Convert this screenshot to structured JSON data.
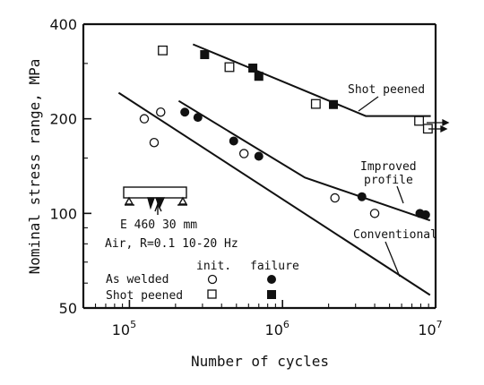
{
  "chart_data": {
    "type": "scatter",
    "title": "",
    "xlabel": "Number of cycles",
    "ylabel": "Nominal stress range, MPa",
    "x_scale": "log",
    "y_scale": "log",
    "xlim": [
      50000,
      10000000
    ],
    "ylim": [
      50,
      400
    ],
    "x_ticks": [
      {
        "value": 100000,
        "base": "10",
        "exp": "5"
      },
      {
        "value": 1000000,
        "base": "10",
        "exp": "6"
      },
      {
        "value": 10000000,
        "base": "10",
        "exp": "7"
      }
    ],
    "y_ticks": [
      {
        "value": 50,
        "label": "50"
      },
      {
        "value": 100,
        "label": "100"
      },
      {
        "value": 200,
        "label": "200"
      },
      {
        "value": 400,
        "label": "400"
      }
    ],
    "grid": false,
    "series": [
      {
        "name": "As welded init.",
        "marker": "open-circle",
        "points": [
          [
            125000,
            200
          ],
          [
            160000,
            210
          ],
          [
            145000,
            168
          ],
          [
            560000,
            155
          ],
          [
            2200000,
            112
          ],
          [
            4000000,
            100
          ]
        ]
      },
      {
        "name": "As welded failure",
        "marker": "filled-circle",
        "points": [
          [
            230000,
            210
          ],
          [
            280000,
            202
          ],
          [
            480000,
            170
          ],
          [
            700000,
            152
          ],
          [
            3300000,
            113
          ],
          [
            7900000,
            100
          ],
          [
            8600000,
            99
          ]
        ]
      },
      {
        "name": "Shot peened init.",
        "marker": "open-square",
        "points": [
          [
            165000,
            330
          ],
          [
            450000,
            292
          ],
          [
            1650000,
            223
          ],
          [
            7800000,
            197
          ],
          [
            8900000,
            186
          ]
        ]
      },
      {
        "name": "Shot peened failure",
        "marker": "filled-square",
        "points": [
          [
            310000,
            320
          ],
          [
            640000,
            290
          ],
          [
            700000,
            273
          ],
          [
            2150000,
            222
          ]
        ]
      }
    ],
    "curves": [
      {
        "name": "Shot peened",
        "points": [
          [
            260000,
            345
          ],
          [
            3500000,
            204
          ],
          [
            9300000,
            204
          ]
        ]
      },
      {
        "name": "Improved profile",
        "points": [
          [
            210000,
            228
          ],
          [
            1400000,
            130
          ],
          [
            9200000,
            95
          ]
        ]
      },
      {
        "name": "Conventional",
        "points": [
          [
            85000,
            242
          ],
          [
            9200000,
            55
          ]
        ]
      }
    ],
    "annotations": {
      "shot_peened": "Shot peened",
      "improved": "Improved",
      "profile": "profile",
      "conventional": "Conventional",
      "spec_line1": "E 460  30 mm",
      "spec_line2": "Air, R=0.1 10-20 Hz"
    },
    "legend": {
      "position": "bottom-left",
      "col_init": "init.",
      "col_failure": "failure",
      "row_welded": "As welded",
      "row_peened": "Shot peened"
    }
  }
}
